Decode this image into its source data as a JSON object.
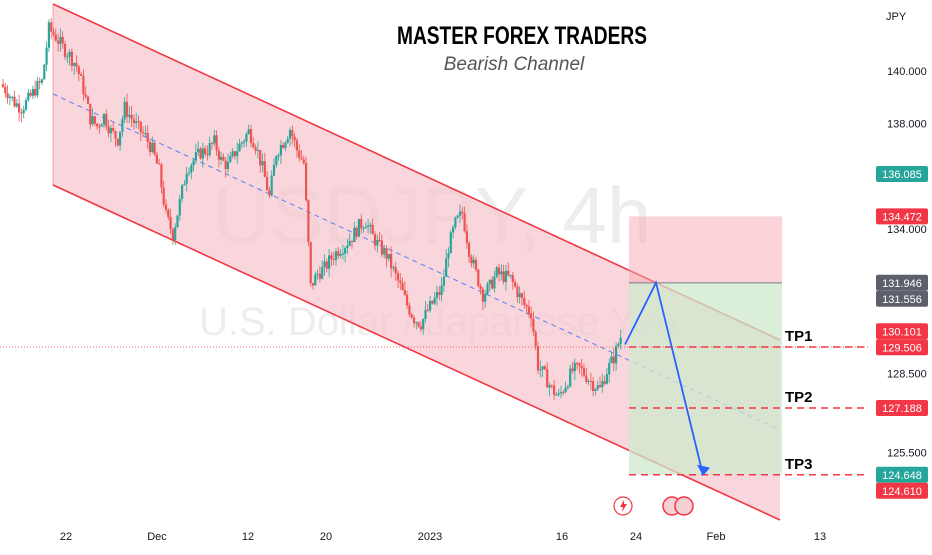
{
  "chart_data": {
    "type": "candlestick",
    "title": "MASTER FOREX TRADERS",
    "subtitle": "Bearish Channel",
    "watermark": {
      "symbol": "USDJPY, 4h",
      "name": "U.S. Dollar / Japanese Yen"
    },
    "currency": "JPY",
    "ylim": [
      121.5,
      142.5
    ],
    "y_ticks": [
      {
        "value": 140.0,
        "label": "140.000"
      },
      {
        "value": 138.0,
        "label": "138.000"
      },
      {
        "value": 134.0,
        "label": "134.000"
      },
      {
        "value": 128.5,
        "label": "128.500"
      },
      {
        "value": 125.5,
        "label": "125.500"
      }
    ],
    "x_ticks": [
      "22",
      "Dec",
      "12",
      "20",
      "2023",
      "16",
      "24",
      "Feb",
      "13"
    ],
    "price_tags": [
      {
        "value": 136.085,
        "label": "136.085",
        "color": "#26a69a"
      },
      {
        "value": 134.472,
        "label": "134.472",
        "color": "#f23645"
      },
      {
        "value": 131.946,
        "label": "131.946",
        "color": "#5d606b"
      },
      {
        "value": 131.556,
        "label": "131.556",
        "color": "#5d606b"
      },
      {
        "value": 130.101,
        "label": "130.101",
        "color": "#f23645"
      },
      {
        "value": 129.506,
        "label": "129.506",
        "color": "#f23645"
      },
      {
        "value": 127.188,
        "label": "127.188",
        "color": "#f23645"
      },
      {
        "value": 124.648,
        "label": "124.648",
        "color": "#26a69a"
      },
      {
        "value": 124.61,
        "label": "124.610",
        "color": "#f23645"
      }
    ],
    "targets": [
      {
        "label": "TP1",
        "value": 129.506
      },
      {
        "label": "TP2",
        "value": 127.188
      },
      {
        "label": "TP3",
        "value": 124.648
      }
    ],
    "position": {
      "entry": 131.946,
      "stop": 134.472,
      "target": 124.648
    },
    "projection": [
      129.6,
      131.95,
      124.648
    ],
    "price_path": [
      139.5,
      139.2,
      138.8,
      138.6,
      138.9,
      139.3,
      139.6,
      141.6,
      141.3,
      140.9,
      140.6,
      140.2,
      139.3,
      138.2,
      137.9,
      138.3,
      137.7,
      137.4,
      138.6,
      138.2,
      137.8,
      137.5,
      137.0,
      136.2,
      134.5,
      133.8,
      135.0,
      136.3,
      136.6,
      136.9,
      137.0,
      137.3,
      136.6,
      136.4,
      136.9,
      137.3,
      137.7,
      137.2,
      136.3,
      135.2,
      136.9,
      137.3,
      137.8,
      137.0,
      136.5,
      131.8,
      132.3,
      132.5,
      132.9,
      133.2,
      133.4,
      133.7,
      134.1,
      134.3,
      133.7,
      133.3,
      133.0,
      132.4,
      131.8,
      131.1,
      130.6,
      130.4,
      130.9,
      131.3,
      131.7,
      133.3,
      134.2,
      134.6,
      133.2,
      132.3,
      131.5,
      131.8,
      132.3,
      132.2,
      132.1,
      131.6,
      131.1,
      130.8,
      128.8,
      128.4,
      127.9,
      127.6,
      128.1,
      128.6,
      128.7,
      128.4,
      128.1,
      127.9,
      128.6,
      129.1,
      129.9
    ]
  }
}
